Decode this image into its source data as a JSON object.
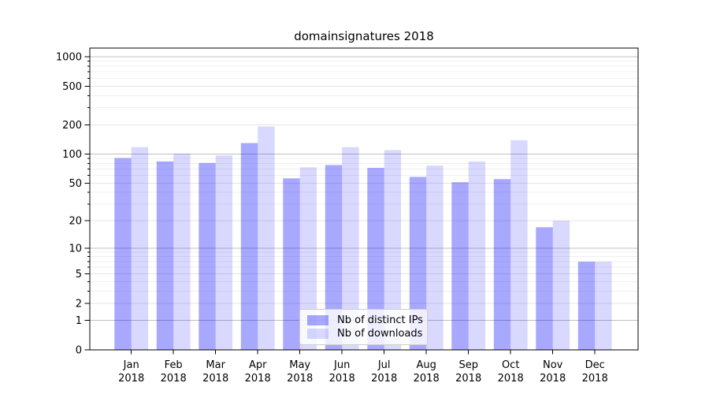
{
  "chart_data": {
    "type": "bar",
    "title": "domainsignatures 2018",
    "categories": [
      "Jan",
      "Feb",
      "Mar",
      "Apr",
      "May",
      "Jun",
      "Jul",
      "Aug",
      "Sep",
      "Oct",
      "Nov",
      "Dec"
    ],
    "x_tick_year": "2018",
    "series": [
      {
        "name": "Nb of distinct IPs",
        "color": "rgba(0,0,255,0.34)",
        "values": [
          91,
          84,
          81,
          130,
          56,
          77,
          72,
          58,
          51,
          55,
          17,
          7
        ]
      },
      {
        "name": "Nb of downloads",
        "color": "rgba(0,0,255,0.15)",
        "values": [
          118,
          101,
          97,
          193,
          73,
          118,
          110,
          76,
          84,
          139,
          20,
          7
        ]
      }
    ],
    "y_ticks": [
      0,
      1,
      2,
      5,
      10,
      20,
      50,
      100,
      200,
      500,
      1000
    ],
    "y_scale": "symlog",
    "ylim": [
      0,
      1228
    ],
    "grid": true,
    "legend_position": "lower center"
  }
}
